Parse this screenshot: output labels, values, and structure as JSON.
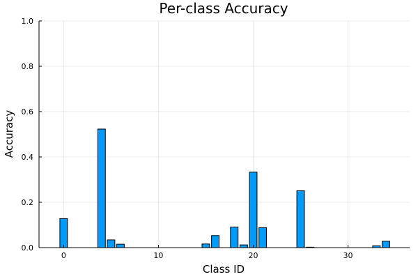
{
  "chart_data": {
    "type": "bar",
    "title": "Per-class Accuracy",
    "xlabel": "Class ID",
    "ylabel": "Accuracy",
    "xlim": [
      -2.6,
      36.5
    ],
    "ylim": [
      0,
      1
    ],
    "xticks": [
      0,
      10,
      20,
      30
    ],
    "yticks": [
      0.0,
      0.2,
      0.4,
      0.6,
      0.8,
      1.0
    ],
    "ytick_labels": [
      "0.0",
      "0.2",
      "0.4",
      "0.6",
      "0.8",
      "1.0"
    ],
    "grid": true,
    "legend": "none",
    "bar_color": "#009af9",
    "x": [
      0,
      1,
      2,
      3,
      4,
      5,
      6,
      7,
      8,
      9,
      10,
      11,
      12,
      13,
      14,
      15,
      16,
      17,
      18,
      19,
      20,
      21,
      22,
      23,
      24,
      25,
      26,
      27,
      28,
      29,
      30,
      31,
      32,
      33,
      34
    ],
    "values": [
      0.128,
      0,
      0,
      0,
      0.523,
      0.034,
      0.015,
      0,
      0,
      0,
      0,
      0,
      0,
      0,
      0,
      0.016,
      0.053,
      0,
      0.091,
      0.012,
      0.333,
      0.088,
      0,
      0,
      0,
      0.251,
      0.002,
      0,
      0,
      0,
      0,
      0,
      0,
      0.008,
      0.028
    ]
  }
}
